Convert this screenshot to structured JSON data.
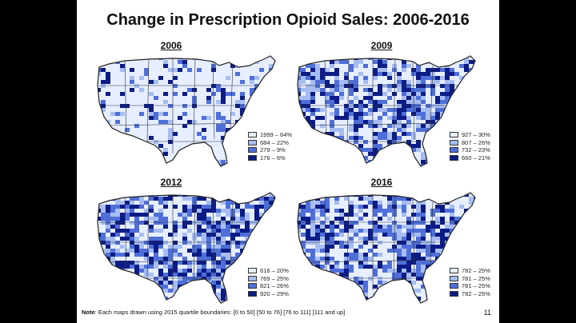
{
  "slide": {
    "title": "Change in Prescription Opioid Sales: 2006-2016",
    "page_number": "11",
    "note_label": "Note",
    "note_text": ": Each maps drawn using 2015 quartile boundaries: [0 to 50]  [50 to 76]  [76 to 111]  [111 and up]"
  },
  "colors": {
    "q1": "#e6eeff",
    "q2": "#a7bdf2",
    "q3": "#4f6fd8",
    "q4": "#0c1c86",
    "border": "#222222"
  },
  "maps": [
    {
      "year": "2006",
      "density": 0.18,
      "legend": [
        {
          "label": "1999 – 64%",
          "q": "q1"
        },
        {
          "label": "684 – 22%",
          "q": "q2"
        },
        {
          "label": "279 –   9%",
          "q": "q3"
        },
        {
          "label": "176 –   6%",
          "q": "q4"
        }
      ]
    },
    {
      "year": "2009",
      "density": 0.55,
      "legend": [
        {
          "label": "927 – 30%",
          "q": "q1"
        },
        {
          "label": "807 – 26%",
          "q": "q2"
        },
        {
          "label": "732 – 23%",
          "q": "q3"
        },
        {
          "label": "660 – 21%",
          "q": "q4"
        }
      ]
    },
    {
      "year": "2012",
      "density": 0.62,
      "legend": [
        {
          "label": "616 – 20%",
          "q": "q1"
        },
        {
          "label": "769 – 25%",
          "q": "q2"
        },
        {
          "label": "821 – 26%",
          "q": "q3"
        },
        {
          "label": "920 – 29%",
          "q": "q4"
        }
      ]
    },
    {
      "year": "2016",
      "density": 0.56,
      "legend": [
        {
          "label": "782 – 25%",
          "q": "q1"
        },
        {
          "label": "781 – 25%",
          "q": "q2"
        },
        {
          "label": "781 – 25%",
          "q": "q3"
        },
        {
          "label": "782 – 25%",
          "q": "q4"
        }
      ]
    }
  ]
}
